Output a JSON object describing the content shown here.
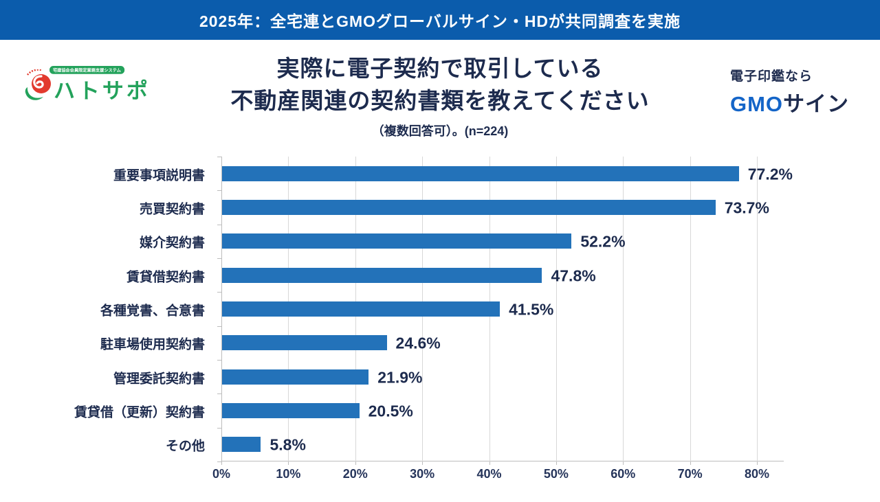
{
  "banner": {
    "text": "2025年：全宅連とGMOグローバルサイン・HDが共同調査を実施",
    "bg_color": "#0b5cac"
  },
  "logos": {
    "hatosapo": {
      "badge": "宅建協会会員限定業務支援システム",
      "name": "ハトサポ",
      "brand_green": "#23a25b",
      "bird_red": "#e23a2e"
    },
    "gmosign": {
      "tagline": "電子印鑑なら",
      "brand_gmo": "GMO",
      "brand_sign": "サイン",
      "gmo_blue": "#1465c8"
    }
  },
  "title": {
    "line1": "実際に電子契約で取引している",
    "line2": "不動産関連の契約書類を教えてください",
    "note": "（複数回答可）。(n=224)"
  },
  "chart_data": {
    "type": "bar",
    "orientation": "horizontal",
    "categories": [
      "重要事項説明書",
      "売買契約書",
      "媒介契約書",
      "賃貸借契約書",
      "各種覚書、合意書",
      "駐車場使用契約書",
      "管理委託契約書",
      "賃貸借（更新）契約書",
      "その他"
    ],
    "values": [
      77.2,
      73.7,
      52.2,
      47.8,
      41.5,
      24.6,
      21.9,
      20.5,
      5.8
    ],
    "value_labels": [
      "77.2%",
      "73.7%",
      "52.2%",
      "47.8%",
      "41.5%",
      "24.6%",
      "21.9%",
      "20.5%",
      "5.8%"
    ],
    "x_ticks": [
      0,
      10,
      20,
      30,
      40,
      50,
      60,
      70,
      80
    ],
    "x_tick_labels": [
      "0%",
      "10%",
      "20%",
      "30%",
      "40%",
      "50%",
      "60%",
      "70%",
      "80%"
    ],
    "xlim": [
      0,
      84
    ],
    "grid": true,
    "bar_color": "#2372b9",
    "text_color": "#1d2b4e"
  }
}
